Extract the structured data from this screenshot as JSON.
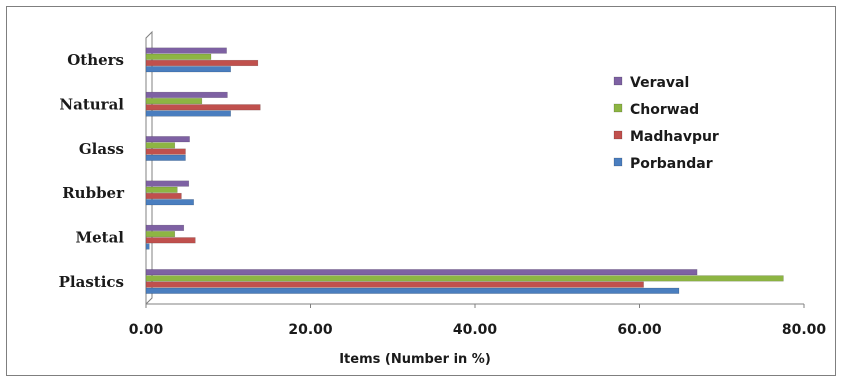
{
  "chart_data": {
    "type": "bar",
    "orientation": "horizontal",
    "categories": [
      "Plastics",
      "Metal",
      "Rubber",
      "Glass",
      "Natural",
      "Others"
    ],
    "series": [
      {
        "name": "Porbandar",
        "color": "#4a7ebf",
        "values": [
          64.8,
          0.4,
          5.8,
          4.8,
          10.3,
          10.3
        ]
      },
      {
        "name": "Madhavpur",
        "color": "#c0504d",
        "values": [
          60.5,
          6.0,
          4.3,
          4.8,
          13.9,
          13.6
        ]
      },
      {
        "name": "Chorwad",
        "color": "#8db543",
        "values": [
          77.5,
          3.5,
          3.8,
          3.5,
          6.8,
          7.9
        ]
      },
      {
        "name": "Veraval",
        "color": "#7e61a3",
        "values": [
          67.0,
          4.6,
          5.2,
          5.3,
          9.9,
          9.8
        ]
      }
    ],
    "xlim": [
      0,
      80
    ],
    "xticks": [
      "0.00",
      "20.00",
      "40.00",
      "60.00",
      "80.00"
    ],
    "xlabel": "Items (Number in %)",
    "ylabel": "",
    "grid": false,
    "legend": "right",
    "legend_order": [
      "Veraval",
      "Chorwad",
      "Madhavpur",
      "Porbandar"
    ]
  }
}
